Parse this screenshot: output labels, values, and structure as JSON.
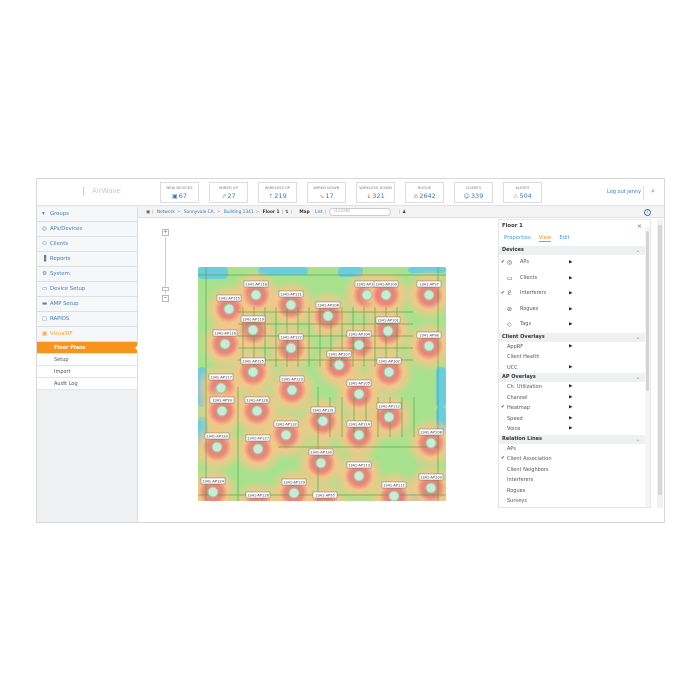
{
  "header": {
    "brand": "AirWave",
    "logout": "Log out jenny",
    "stats": [
      {
        "label": "NEW DEVICES",
        "value": "67",
        "icon": "device-icon",
        "color": "#3a7ab8"
      },
      {
        "label": "WIRED UP",
        "value": "27",
        "icon": "arrow-up-icon",
        "color": "#5cb85c"
      },
      {
        "label": "WIRELESS UP",
        "value": "219",
        "icon": "wireless-up-icon",
        "color": "#5cb85c"
      },
      {
        "label": "WIRED DOWN",
        "value": "17",
        "icon": "arrow-down-icon",
        "color": "#f08a24"
      },
      {
        "label": "WIRELESS DOWN",
        "value": "321",
        "icon": "wireless-down-icon",
        "color": "#e05050"
      },
      {
        "label": "ROGUE",
        "value": "2642",
        "icon": "rogue-icon",
        "color": "#f08a24"
      },
      {
        "label": "CLIENTS",
        "value": "339",
        "icon": "user-icon",
        "color": "#3a7ab8"
      },
      {
        "label": "ALERTS",
        "value": "504",
        "icon": "warning-icon",
        "color": "#f08a24"
      }
    ]
  },
  "sidebar": {
    "items": [
      {
        "label": "Groups",
        "icon": "wifi-icon"
      },
      {
        "label": "APs/Devices",
        "icon": "ap-icon"
      },
      {
        "label": "Clients",
        "icon": "clients-icon"
      },
      {
        "label": "Reports",
        "icon": "bar-chart-icon"
      },
      {
        "label": "System",
        "icon": "gear-icon"
      },
      {
        "label": "Device Setup",
        "icon": "device-setup-icon"
      },
      {
        "label": "AMP Setup",
        "icon": "amp-icon"
      },
      {
        "label": "RAPIDS",
        "icon": "shield-icon"
      },
      {
        "label": "VisualRF",
        "icon": "building-icon"
      }
    ],
    "subitems": [
      {
        "label": "Floor Plans",
        "active": true
      },
      {
        "label": "Setup"
      },
      {
        "label": "Import"
      },
      {
        "label": "Audit Log"
      }
    ]
  },
  "breadcrumb": {
    "items": [
      "Network",
      "Sunnyvale CA.",
      "Building 1341",
      "Floor 1"
    ],
    "map": "Map",
    "list": "List",
    "locate_placeholder": "Locate"
  },
  "map": {
    "aps": [
      "1341-AP118",
      "1341-AP115",
      "1341-AP121",
      "1341-AP110",
      "1341-AP100",
      "1341-AP97",
      "1341-AP106",
      "1341-AP119",
      "1341-AP101",
      "1341-AP116",
      "1341-AP122",
      "1341-AP104",
      "1341-AP98",
      "1341-AP107",
      "1341-AP125",
      "1341-AP102",
      "1341-AP117",
      "1341-AP123",
      "1341-AP105",
      "1341-AP99",
      "1341-AP128",
      "1341-AP131",
      "1341-AP112",
      "1341-AP132",
      "1341-AP114",
      "1341-AP120",
      "1341-AP127",
      "1341-AP108",
      "1341-AP130",
      "1341-AP113",
      "1341-AP124",
      "1341-AP129",
      "1341-AP111",
      "1341-AP109",
      "1341-AP126",
      "1341-AP95"
    ],
    "colors": {
      "base": "#a8e28e",
      "mid": "#f7c58a",
      "hot": "#ef7d78",
      "water": "#5cc8f0",
      "wall": "#4a9a3a"
    }
  },
  "panel": {
    "title": "Floor 1",
    "tabs": [
      "Properties",
      "View",
      "Edit"
    ],
    "active_tab": "View",
    "sections": [
      {
        "title": "Devices",
        "items": [
          {
            "label": "APs",
            "checked": true,
            "arrow": true,
            "icon": "ap-icon"
          },
          {
            "label": "Clients",
            "checked": false,
            "arrow": true,
            "icon": "monitor-icon"
          },
          {
            "label": "Interferers",
            "checked": true,
            "arrow": true,
            "icon": "interferer-icon"
          },
          {
            "label": "Rogues",
            "checked": false,
            "arrow": true,
            "icon": "rogue-icon"
          },
          {
            "label": "Tags",
            "checked": false,
            "arrow": true,
            "icon": "tag-icon"
          }
        ]
      },
      {
        "title": "Client Overlays",
        "items": [
          {
            "label": "AppRF",
            "arrow": true
          },
          {
            "label": "Client Health"
          },
          {
            "label": "UCC",
            "arrow": true
          }
        ]
      },
      {
        "title": "AP Overlays",
        "items": [
          {
            "label": "Ch. Utilization",
            "arrow": true
          },
          {
            "label": "Channel",
            "arrow": true
          },
          {
            "label": "Heatmap",
            "checked": true,
            "arrow": true
          },
          {
            "label": "Speed",
            "arrow": true
          },
          {
            "label": "Voice",
            "arrow": true
          }
        ]
      },
      {
        "title": "Relation Lines",
        "items": [
          {
            "label": "APs"
          },
          {
            "label": "Client Association",
            "checked": true
          },
          {
            "label": "Client Neighbors"
          },
          {
            "label": "Interferers"
          },
          {
            "label": "Rogues"
          },
          {
            "label": "Surveys"
          }
        ]
      }
    ]
  }
}
